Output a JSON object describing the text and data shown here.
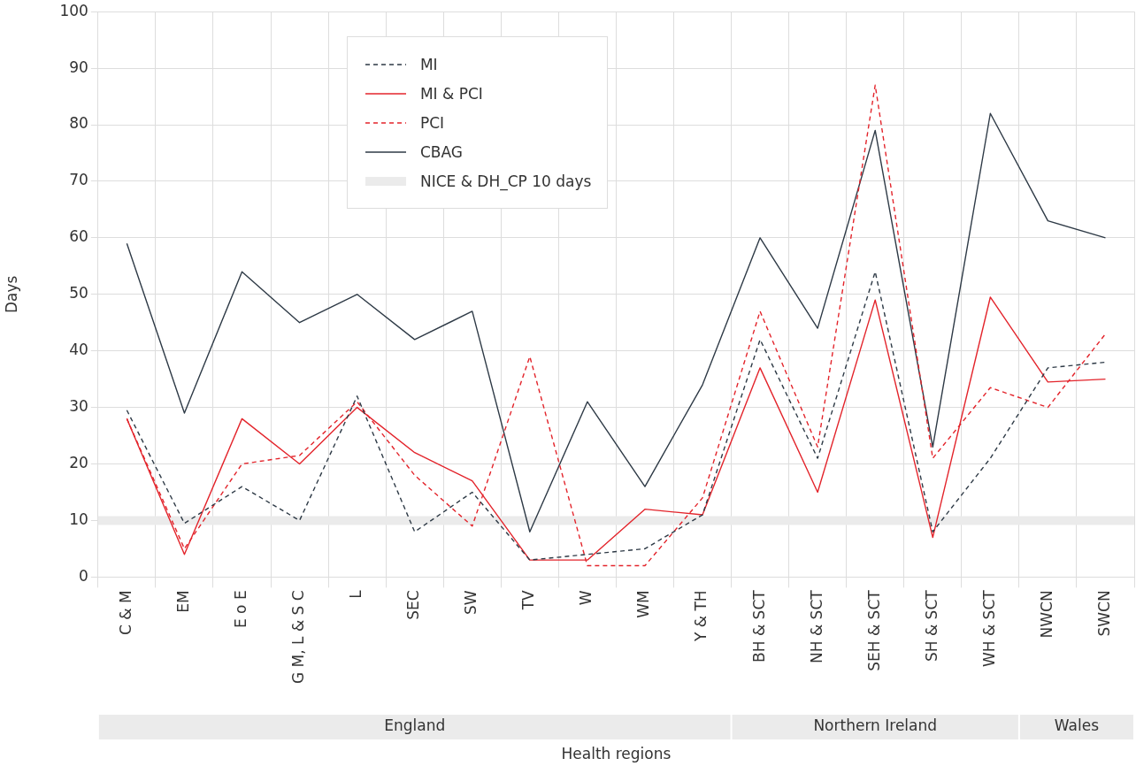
{
  "chart_data": {
    "type": "line",
    "xlabel": "Health regions",
    "ylabel": "Days",
    "categories": [
      "C & M",
      "EM",
      "E o E",
      "G M, L & S C",
      "L",
      "SEC",
      "SW",
      "TV",
      "W",
      "WM",
      "Y & TH",
      "BH & SCT",
      "NH & SCT",
      "SEH & SCT",
      "SH & SCT",
      "WH & SCT",
      "NWCN",
      "SWCN"
    ],
    "series": [
      {
        "name": "MI",
        "color": "#2e3a46",
        "line_style": "dashed",
        "values": [
          29.5,
          9.5,
          16,
          10,
          32,
          8,
          15,
          3,
          4,
          5,
          11,
          42,
          21,
          54,
          8,
          21,
          37,
          38
        ]
      },
      {
        "name": "MI & PCI",
        "color": "#e3242b",
        "line_style": "solid",
        "values": [
          28,
          4,
          28,
          20,
          30,
          22,
          17,
          3,
          3,
          12,
          11,
          37,
          15,
          49,
          7,
          49.5,
          34.5,
          35
        ]
      },
      {
        "name": "PCI",
        "color": "#e3242b",
        "line_style": "dashed",
        "values": [
          28,
          5,
          20,
          21.5,
          31,
          18,
          9,
          39,
          2,
          2,
          14,
          47,
          23,
          87,
          21,
          33.5,
          30,
          43
        ]
      },
      {
        "name": "CBAG",
        "color": "#2e3a46",
        "line_style": "solid",
        "values": [
          59,
          29,
          54,
          45,
          50,
          42,
          47,
          8,
          31,
          16,
          34,
          60,
          44,
          79,
          23,
          82,
          63,
          60
        ]
      }
    ],
    "ref_lines": [
      {
        "axis": "y",
        "value": 10,
        "label": "NICE & DH_CP 10 days",
        "color": "#ebebeb"
      }
    ],
    "annotations": [
      "England",
      "Northern Ireland",
      "Wales"
    ],
    "ylim": [
      0,
      100
    ],
    "yticks": [
      0,
      10,
      20,
      30,
      40,
      50,
      60,
      70,
      80,
      90,
      100
    ],
    "grid": true,
    "legend": "top",
    "marker": "none"
  }
}
